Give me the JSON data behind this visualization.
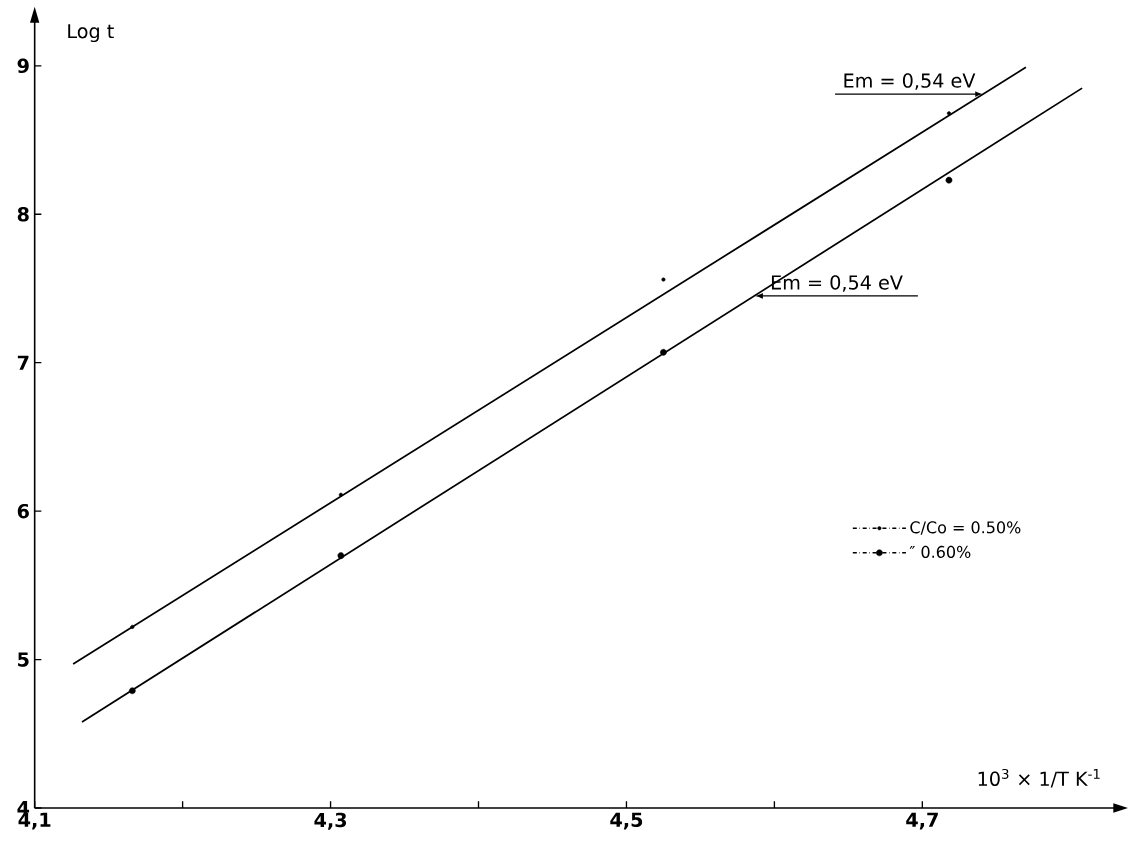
{
  "chart_data": {
    "type": "scatter",
    "xlabel": "10$^{3}$ × 1/T K$^{-1}$",
    "ylabel": "Log t",
    "series": [
      {
        "name": "C/Co = 0.50%",
        "color": "#000000",
        "marker": "circle",
        "line_style": "dashdot",
        "x": [
          4.166,
          4.307,
          4.525,
          4.718
        ],
        "values": [
          5.22,
          6.11,
          7.56,
          8.68
        ]
      },
      {
        "name": "″ 0.60%",
        "color": "#000000",
        "marker": "circle",
        "line_style": "dashdot",
        "x": [
          4.166,
          4.307,
          4.525,
          4.718
        ],
        "values": [
          4.79,
          5.7,
          7.07,
          8.23
        ]
      },
      {
        "type": "line",
        "color": "#000000",
        "line_style": "solid",
        "x": [
          4.126,
          4.77
        ],
        "values": [
          4.97,
          8.99
        ]
      },
      {
        "type": "line",
        "color": "#000000",
        "line_style": "solid",
        "x": [
          4.132,
          4.808
        ],
        "values": [
          4.58,
          8.85
        ]
      }
    ],
    "annotations": [
      {
        "text": "Em = 0,54 eV",
        "x": 4.741,
        "y": 8.81
      },
      {
        "text": "Em = 0,54 eV",
        "x": 4.587,
        "y": 7.45
      }
    ],
    "xlim": [
      4.1,
      4.83
    ],
    "ylim": [
      4,
      9.3
    ],
    "xticks": [
      {
        "value": 4.1,
        "label": "4,1"
      },
      {
        "value": 4.2,
        "label": null
      },
      {
        "value": 4.3,
        "label": "4,3"
      },
      {
        "value": 4.4,
        "label": null
      },
      {
        "value": 4.5,
        "label": "4,5"
      },
      {
        "value": 4.6,
        "label": null
      },
      {
        "value": 4.7,
        "label": "4,7"
      }
    ],
    "yticks": [
      4,
      5,
      6,
      7,
      8,
      9
    ],
    "grid": false,
    "legend": "right"
  }
}
